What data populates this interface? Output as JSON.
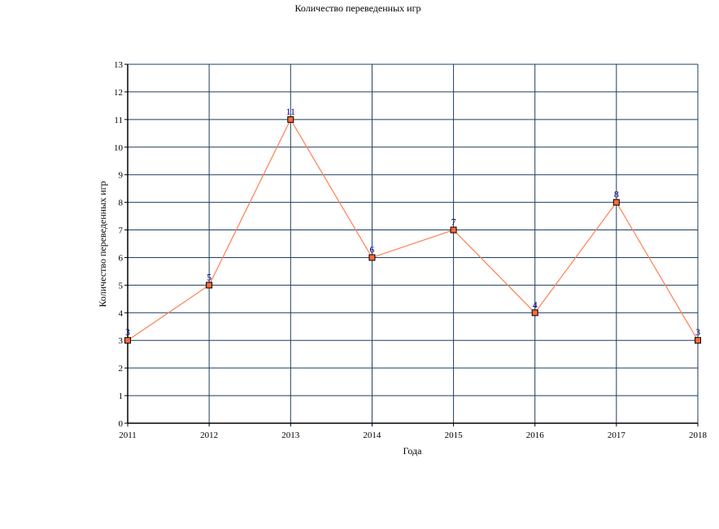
{
  "chart_data": {
    "type": "line",
    "title": "Количество переведенных игр",
    "xlabel": "Года",
    "ylabel": "Количество переведенных игр",
    "categories": [
      "2011",
      "2012",
      "2013",
      "2014",
      "2015",
      "2016",
      "2017",
      "2018"
    ],
    "values": [
      3,
      5,
      11,
      6,
      7,
      4,
      8,
      3
    ],
    "ylim": [
      0,
      13
    ],
    "yticks": [
      "0",
      "1",
      "2",
      "3",
      "4",
      "5",
      "6",
      "7",
      "8",
      "9",
      "10",
      "11",
      "12",
      "13"
    ],
    "grid": true,
    "data_labels": true,
    "colors": {
      "line": "#ff7f50",
      "marker_fill": "#ff6a3d",
      "marker_stroke": "#000000",
      "grid": "#1c3f5f",
      "axis": "#000000",
      "data_label": "#000080"
    }
  }
}
